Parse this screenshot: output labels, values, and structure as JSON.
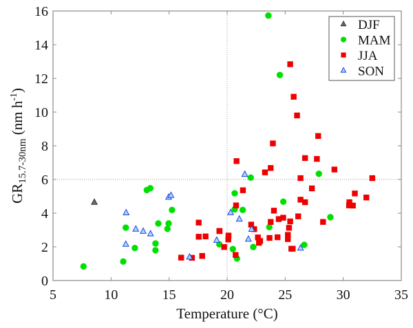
{
  "chart_data": {
    "type": "scatter",
    "title": "",
    "xlabel": "Temperature (°C)",
    "ylabel": {
      "main": "GR",
      "subscript": "15.7-30nm",
      "unit_prefix": " (nm h",
      "unit_sup": "-1",
      "unit_suffix": ")"
    },
    "xlim": [
      5,
      35
    ],
    "ylim": [
      0,
      16
    ],
    "xticks": [
      5,
      10,
      15,
      20,
      25,
      30,
      35
    ],
    "yticks": [
      0,
      2,
      4,
      6,
      8,
      10,
      12,
      14,
      16
    ],
    "reference_lines": {
      "x": 20,
      "y": 6
    },
    "grid": false,
    "legend_position": "top-right",
    "series": [
      {
        "name": "DJF",
        "marker": "triangle",
        "color": "#6b6b6b",
        "edge": "#333333",
        "points": [
          [
            8.56,
            4.65
          ]
        ]
      },
      {
        "name": "MAM",
        "marker": "circle",
        "color": "#00e000",
        "edge": "#00e000",
        "points": [
          [
            7.63,
            0.84
          ],
          [
            11.05,
            1.13
          ],
          [
            11.27,
            3.14
          ],
          [
            12.05,
            1.93
          ],
          [
            13.08,
            5.37
          ],
          [
            13.38,
            5.48
          ],
          [
            13.83,
            2.2
          ],
          [
            13.83,
            1.8
          ],
          [
            14.07,
            3.39
          ],
          [
            14.96,
            3.39
          ],
          [
            14.86,
            3.07
          ],
          [
            15.25,
            4.19
          ],
          [
            19.33,
            2.15
          ],
          [
            22.03,
            6.11
          ],
          [
            27.9,
            6.34
          ],
          [
            20.65,
            5.18
          ],
          [
            24.84,
            4.68
          ],
          [
            20.65,
            4.23
          ],
          [
            21.34,
            4.19
          ],
          [
            28.89,
            3.76
          ],
          [
            23.63,
            3.17
          ],
          [
            20.49,
            1.87
          ],
          [
            22.25,
            1.99
          ],
          [
            20.85,
            1.31
          ],
          [
            26.64,
            2.12
          ],
          [
            23.55,
            15.73
          ],
          [
            24.54,
            12.2
          ]
        ]
      },
      {
        "name": "JJA",
        "marker": "square",
        "color": "#ee0000",
        "edge": "#ee0000",
        "points": [
          [
            16.04,
            1.36
          ],
          [
            16.97,
            1.35
          ],
          [
            17.55,
            3.44
          ],
          [
            17.55,
            2.6
          ],
          [
            18.14,
            2.62
          ],
          [
            17.85,
            1.46
          ],
          [
            19.33,
            2.94
          ],
          [
            19.74,
            1.99
          ],
          [
            20.12,
            2.67
          ],
          [
            20.1,
            2.44
          ],
          [
            20.81,
            7.09
          ],
          [
            23.75,
            6.68
          ],
          [
            23.26,
            6.42
          ],
          [
            26.71,
            7.27
          ],
          [
            27.73,
            7.22
          ],
          [
            29.24,
            6.59
          ],
          [
            26.32,
            6.08
          ],
          [
            32.5,
            6.08
          ],
          [
            21.36,
            5.36
          ],
          [
            27.3,
            5.47
          ],
          [
            31.0,
            5.17
          ],
          [
            31.99,
            4.93
          ],
          [
            30.53,
            4.65
          ],
          [
            30.83,
            4.45
          ],
          [
            30.5,
            4.46
          ],
          [
            26.32,
            4.8
          ],
          [
            26.71,
            4.65
          ],
          [
            20.77,
            4.46
          ],
          [
            24.03,
            4.15
          ],
          [
            26.12,
            3.81
          ],
          [
            24.83,
            3.73
          ],
          [
            24.44,
            3.65
          ],
          [
            23.75,
            3.48
          ],
          [
            25.43,
            3.51
          ],
          [
            28.26,
            3.48
          ],
          [
            22.07,
            3.32
          ],
          [
            22.33,
            3.05
          ],
          [
            25.33,
            3.13
          ],
          [
            19.35,
            2.94
          ],
          [
            22.65,
            2.56
          ],
          [
            22.84,
            2.35
          ],
          [
            22.74,
            2.24
          ],
          [
            23.65,
            2.53
          ],
          [
            24.34,
            2.57
          ],
          [
            25.23,
            2.71
          ],
          [
            25.23,
            2.46
          ],
          [
            20.73,
            1.52
          ],
          [
            25.53,
            1.89
          ],
          [
            25.65,
            1.89
          ],
          [
            25.43,
            12.84
          ],
          [
            25.73,
            10.91
          ],
          [
            26.02,
            9.8
          ],
          [
            27.84,
            8.58
          ],
          [
            23.94,
            8.14
          ]
        ]
      },
      {
        "name": "SON",
        "marker": "triangle",
        "color": "#a8d8ff",
        "edge": "#2040e0",
        "points": [
          [
            11.3,
            4.03
          ],
          [
            11.27,
            2.16
          ],
          [
            12.13,
            3.06
          ],
          [
            12.77,
            2.93
          ],
          [
            13.4,
            2.78
          ],
          [
            14.96,
            4.95
          ],
          [
            15.16,
            5.06
          ],
          [
            16.76,
            1.4
          ],
          [
            19.1,
            2.4
          ],
          [
            20.3,
            4.04
          ],
          [
            21.52,
            6.31
          ],
          [
            21.05,
            3.65
          ],
          [
            22.11,
            3.05
          ],
          [
            21.83,
            2.46
          ],
          [
            26.32,
            1.93
          ]
        ]
      }
    ]
  }
}
